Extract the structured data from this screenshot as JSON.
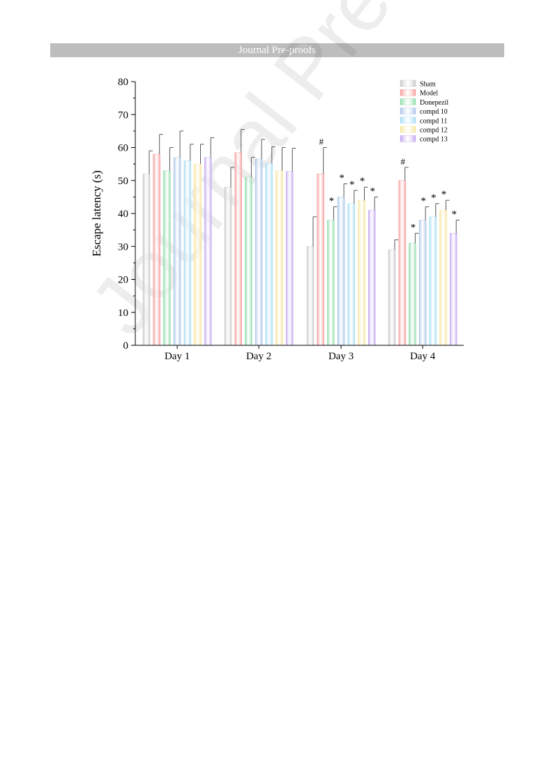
{
  "page": {
    "header": "Journal Pre-proofs",
    "watermark": "Journal Pre-proofs"
  },
  "chart_data": {
    "type": "bar",
    "title": "",
    "xlabel": "",
    "ylabel": "Escape latency (s)",
    "ylim": [
      0,
      80
    ],
    "yticks": [
      0,
      10,
      20,
      30,
      40,
      50,
      60,
      70,
      80
    ],
    "categories": [
      "Day 1",
      "Day 2",
      "Day 3",
      "Day 4"
    ],
    "legend_position": "top-right",
    "grid": false,
    "series": [
      {
        "name": "Sham",
        "color": "#c8c8c8",
        "values": [
          52,
          48,
          30,
          29
        ],
        "errors": [
          7,
          6,
          9,
          3
        ],
        "markers": [
          "",
          "",
          "",
          ""
        ]
      },
      {
        "name": "Model",
        "color": "#f79a9a",
        "values": [
          58,
          58.5,
          52,
          50
        ],
        "errors": [
          6,
          7,
          8,
          4
        ],
        "markers": [
          "",
          "",
          "#",
          "#"
        ]
      },
      {
        "name": "Donepezil",
        "color": "#8fdcaa",
        "values": [
          53,
          51,
          38,
          31
        ],
        "errors": [
          7,
          6,
          4,
          3
        ],
        "markers": [
          "",
          "",
          "*",
          "*"
        ]
      },
      {
        "name": "compd 10",
        "color": "#a9c4e8",
        "values": [
          57,
          56.5,
          45,
          38
        ],
        "errors": [
          8,
          6,
          4,
          4
        ],
        "markers": [
          "",
          "",
          "*",
          "*"
        ]
      },
      {
        "name": "compd 11",
        "color": "#a5dcf4",
        "values": [
          56,
          55.2,
          43,
          39
        ],
        "errors": [
          5,
          5,
          4,
          4
        ],
        "markers": [
          "",
          "",
          "*",
          "*"
        ]
      },
      {
        "name": "compd 12",
        "color": "#f6e49a",
        "values": [
          55,
          53,
          44,
          41
        ],
        "errors": [
          6,
          7,
          4,
          3
        ],
        "markers": [
          "",
          "",
          "*",
          "*"
        ]
      },
      {
        "name": "compd 13",
        "color": "#c4a6f2",
        "values": [
          57,
          52.8,
          41,
          34
        ],
        "errors": [
          6,
          7,
          4,
          4
        ],
        "markers": [
          "",
          "",
          "*",
          "*"
        ]
      }
    ]
  }
}
